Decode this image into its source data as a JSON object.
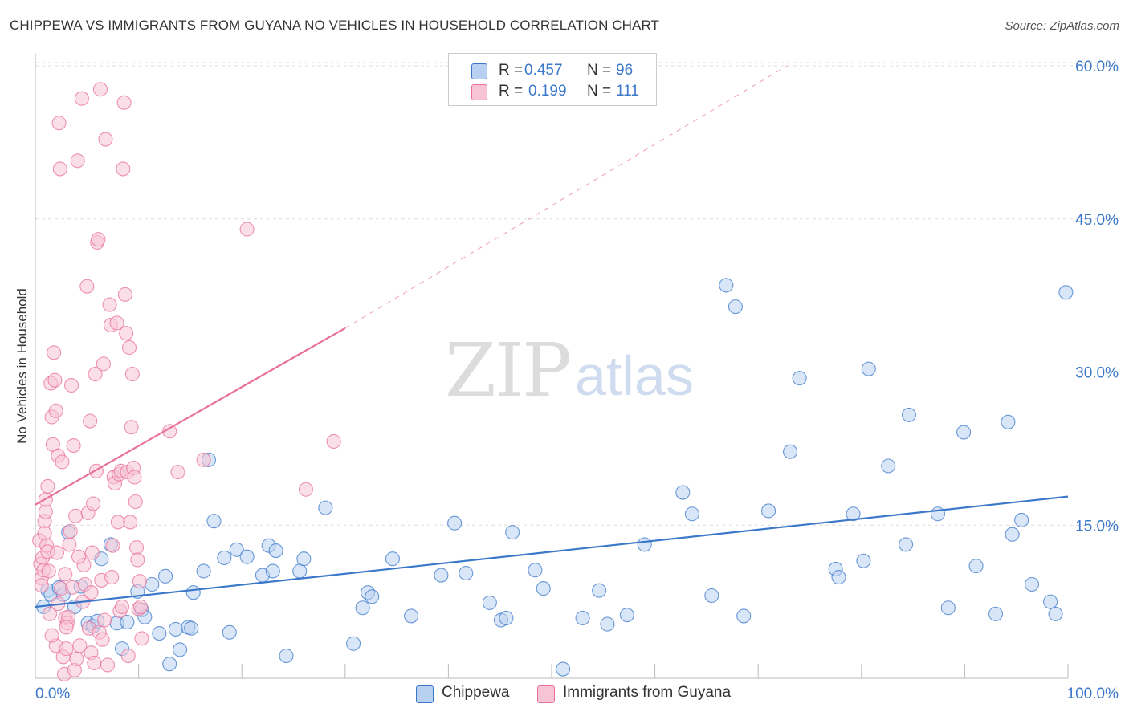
{
  "title": "CHIPPEWA VS IMMIGRANTS FROM GUYANA NO VEHICLES IN HOUSEHOLD CORRELATION CHART",
  "source": "Source: ZipAtlas.com",
  "watermark": {
    "zip": "ZIP",
    "atlas": "atlas"
  },
  "colors": {
    "blue": "#3b78c9",
    "blue_fill": "#b9d1f0",
    "pink": "#e8719a",
    "pink_fill": "#f7c4d5",
    "grid": "#dddddd"
  },
  "legend_top": [
    {
      "r_label": "R =",
      "r_value": "0.457",
      "n_label": "N =",
      "n_value": "96"
    },
    {
      "r_label": "R =",
      "r_value": "0.199",
      "n_label": "N =",
      "n_value": "111"
    }
  ],
  "legend_bottom": [
    {
      "label": "Chippewa"
    },
    {
      "label": "Immigrants from Guyana"
    }
  ],
  "chart_data": {
    "type": "scatter",
    "title": "CHIPPEWA VS IMMIGRANTS FROM GUYANA NO VEHICLES IN HOUSEHOLD CORRELATION CHART",
    "xlabel": "",
    "ylabel": "No Vehicles in Household",
    "xlim": [
      0,
      100
    ],
    "ylim": [
      0,
      62
    ],
    "x_tick_labels": [
      "0.0%",
      "100.0%"
    ],
    "y_ticks": [
      15,
      30,
      45,
      60
    ],
    "y_tick_labels": [
      "15.0%",
      "30.0%",
      "45.0%",
      "60.0%"
    ],
    "grid": true,
    "legend_position": "top-center",
    "series": [
      {
        "name": "Chippewa",
        "color": "#3b78c9",
        "trend": {
          "x": [
            0,
            100
          ],
          "y": [
            7.0,
            17.8
          ],
          "dashed_extension": false
        },
        "points": [
          [
            0.8,
            7.0
          ],
          [
            1.2,
            8.6
          ],
          [
            1.5,
            8.2
          ],
          [
            2.3,
            8.9
          ],
          [
            2.7,
            8.2
          ],
          [
            3.2,
            14.3
          ],
          [
            3.8,
            7.0
          ],
          [
            4.4,
            9.0
          ],
          [
            5.1,
            5.4
          ],
          [
            5.6,
            5.1
          ],
          [
            6.0,
            5.6
          ],
          [
            6.4,
            11.7
          ],
          [
            7.3,
            13.1
          ],
          [
            7.9,
            5.4
          ],
          [
            8.4,
            2.9
          ],
          [
            8.9,
            5.5
          ],
          [
            9.9,
            8.5
          ],
          [
            10.3,
            6.7
          ],
          [
            10.6,
            6.0
          ],
          [
            11.3,
            9.2
          ],
          [
            12.0,
            4.4
          ],
          [
            12.6,
            10.0
          ],
          [
            13.0,
            1.4
          ],
          [
            13.6,
            4.8
          ],
          [
            14.0,
            2.8
          ],
          [
            14.8,
            5.0
          ],
          [
            15.1,
            4.9
          ],
          [
            15.3,
            8.4
          ],
          [
            16.3,
            10.5
          ],
          [
            16.8,
            21.4
          ],
          [
            17.3,
            15.4
          ],
          [
            18.3,
            11.8
          ],
          [
            18.8,
            4.5
          ],
          [
            19.5,
            12.6
          ],
          [
            20.5,
            11.9
          ],
          [
            22.0,
            10.1
          ],
          [
            22.6,
            13.0
          ],
          [
            23.0,
            10.5
          ],
          [
            23.3,
            12.5
          ],
          [
            24.3,
            2.2
          ],
          [
            25.6,
            10.5
          ],
          [
            26.0,
            11.7
          ],
          [
            28.1,
            16.7
          ],
          [
            30.8,
            3.4
          ],
          [
            31.7,
            6.9
          ],
          [
            32.2,
            8.4
          ],
          [
            32.6,
            8.0
          ],
          [
            34.6,
            11.7
          ],
          [
            36.4,
            6.1
          ],
          [
            39.3,
            10.1
          ],
          [
            40.6,
            15.2
          ],
          [
            41.7,
            10.3
          ],
          [
            44.0,
            7.4
          ],
          [
            45.1,
            5.7
          ],
          [
            45.6,
            5.9
          ],
          [
            46.2,
            14.3
          ],
          [
            48.4,
            10.6
          ],
          [
            49.2,
            8.8
          ],
          [
            51.1,
            0.9
          ],
          [
            53.0,
            5.9
          ],
          [
            54.6,
            8.6
          ],
          [
            55.4,
            5.3
          ],
          [
            57.3,
            6.2
          ],
          [
            59.0,
            13.1
          ],
          [
            62.7,
            18.2
          ],
          [
            63.6,
            16.1
          ],
          [
            65.5,
            8.1
          ],
          [
            66.9,
            38.5
          ],
          [
            67.8,
            36.4
          ],
          [
            68.6,
            6.1
          ],
          [
            71.0,
            16.4
          ],
          [
            73.1,
            22.2
          ],
          [
            74.0,
            29.4
          ],
          [
            77.5,
            10.7
          ],
          [
            77.8,
            9.9
          ],
          [
            79.2,
            16.1
          ],
          [
            80.2,
            11.5
          ],
          [
            80.7,
            30.3
          ],
          [
            82.6,
            20.8
          ],
          [
            84.3,
            13.1
          ],
          [
            84.6,
            25.8
          ],
          [
            87.4,
            16.1
          ],
          [
            88.4,
            6.9
          ],
          [
            89.9,
            24.1
          ],
          [
            91.1,
            11.0
          ],
          [
            93.0,
            6.3
          ],
          [
            94.2,
            25.1
          ],
          [
            94.6,
            14.1
          ],
          [
            95.5,
            15.5
          ],
          [
            96.5,
            9.2
          ],
          [
            98.3,
            7.5
          ],
          [
            98.8,
            6.3
          ],
          [
            99.8,
            37.8
          ]
        ]
      },
      {
        "name": "Immigrants from Guyana",
        "color": "#e8719a",
        "trend": {
          "x": [
            0,
            30.0
          ],
          "y": [
            17.0,
            34.3
          ],
          "dashed_extension": {
            "x": [
              30.0,
              72.8
            ],
            "y": [
              34.3,
              60.0
            ]
          }
        },
        "points": [
          [
            0.4,
            13.5
          ],
          [
            0.5,
            11.2
          ],
          [
            0.6,
            9.8
          ],
          [
            0.6,
            9.1
          ],
          [
            0.7,
            11.8
          ],
          [
            0.8,
            10.6
          ],
          [
            0.9,
            15.4
          ],
          [
            0.9,
            14.2
          ],
          [
            1.0,
            16.3
          ],
          [
            1.0,
            17.5
          ],
          [
            1.1,
            13.0
          ],
          [
            1.2,
            18.8
          ],
          [
            1.2,
            12.4
          ],
          [
            1.3,
            10.5
          ],
          [
            1.4,
            6.3
          ],
          [
            1.5,
            28.9
          ],
          [
            1.6,
            25.6
          ],
          [
            1.7,
            22.9
          ],
          [
            1.8,
            31.9
          ],
          [
            1.9,
            29.2
          ],
          [
            2.0,
            26.2
          ],
          [
            2.0,
            3.2
          ],
          [
            2.1,
            12.3
          ],
          [
            2.2,
            21.8
          ],
          [
            2.3,
            54.4
          ],
          [
            2.4,
            49.9
          ],
          [
            2.5,
            8.8
          ],
          [
            2.6,
            21.2
          ],
          [
            2.7,
            2.1
          ],
          [
            2.8,
            0.4
          ],
          [
            2.9,
            5.9
          ],
          [
            3.0,
            2.9
          ],
          [
            3.1,
            5.4
          ],
          [
            3.2,
            6.0
          ],
          [
            3.3,
            13.1
          ],
          [
            3.4,
            14.4
          ],
          [
            3.5,
            28.7
          ],
          [
            3.6,
            8.9
          ],
          [
            3.7,
            22.8
          ],
          [
            3.8,
            0.8
          ],
          [
            3.9,
            15.9
          ],
          [
            4.0,
            1.9
          ],
          [
            4.1,
            50.7
          ],
          [
            4.3,
            3.2
          ],
          [
            4.5,
            56.8
          ],
          [
            4.6,
            7.5
          ],
          [
            4.7,
            11.1
          ],
          [
            4.8,
            9.2
          ],
          [
            5.0,
            38.4
          ],
          [
            5.1,
            16.2
          ],
          [
            5.2,
            4.9
          ],
          [
            5.3,
            25.2
          ],
          [
            5.4,
            2.5
          ],
          [
            5.5,
            12.3
          ],
          [
            5.6,
            17.1
          ],
          [
            5.7,
            1.5
          ],
          [
            5.8,
            29.8
          ],
          [
            5.9,
            20.3
          ],
          [
            6.0,
            42.7
          ],
          [
            6.1,
            43.0
          ],
          [
            6.2,
            4.5
          ],
          [
            6.3,
            57.7
          ],
          [
            6.4,
            9.6
          ],
          [
            6.5,
            3.8
          ],
          [
            6.6,
            30.8
          ],
          [
            6.8,
            52.8
          ],
          [
            7.0,
            1.3
          ],
          [
            7.2,
            36.6
          ],
          [
            7.3,
            34.6
          ],
          [
            7.5,
            13.0
          ],
          [
            7.6,
            19.7
          ],
          [
            7.7,
            19.1
          ],
          [
            7.9,
            34.8
          ],
          [
            8.0,
            15.3
          ],
          [
            8.1,
            20.0
          ],
          [
            8.2,
            6.6
          ],
          [
            8.3,
            20.3
          ],
          [
            8.4,
            7.0
          ],
          [
            8.5,
            49.9
          ],
          [
            8.6,
            56.4
          ],
          [
            8.7,
            37.6
          ],
          [
            8.8,
            33.8
          ],
          [
            8.9,
            20.2
          ],
          [
            9.0,
            2.2
          ],
          [
            9.1,
            32.4
          ],
          [
            9.2,
            15.3
          ],
          [
            9.3,
            24.6
          ],
          [
            9.4,
            29.8
          ],
          [
            9.5,
            20.6
          ],
          [
            9.6,
            19.7
          ],
          [
            9.7,
            17.3
          ],
          [
            9.8,
            12.8
          ],
          [
            9.9,
            11.6
          ],
          [
            10.0,
            6.8
          ],
          [
            10.1,
            9.5
          ],
          [
            10.2,
            7.0
          ],
          [
            10.3,
            3.9
          ],
          [
            13.0,
            24.2
          ],
          [
            13.8,
            20.2
          ],
          [
            16.3,
            21.4
          ],
          [
            20.5,
            44.0
          ],
          [
            26.2,
            18.5
          ],
          [
            28.9,
            23.2
          ],
          [
            2.2,
            7.3
          ],
          [
            3.0,
            5.0
          ],
          [
            4.2,
            11.9
          ],
          [
            5.4,
            8.4
          ],
          [
            6.7,
            5.7
          ],
          [
            7.4,
            9.9
          ],
          [
            1.6,
            4.2
          ],
          [
            2.9,
            10.2
          ]
        ]
      }
    ]
  }
}
